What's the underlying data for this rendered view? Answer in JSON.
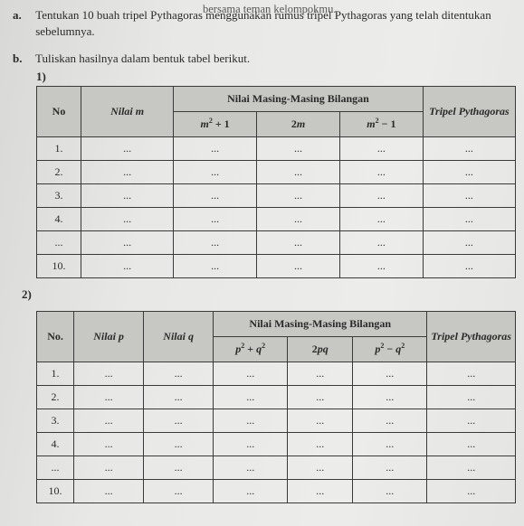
{
  "pretext": "bersama teman kelompokmu.",
  "qa": {
    "label": "a.",
    "text": "Tentukan 10 buah tripel Pythagoras menggunakan rumus tripel Pythagoras yang telah ditentukan sebelumnya."
  },
  "qb": {
    "label": "b.",
    "text": "Tuliskan hasilnya dalam bentuk tabel berikut."
  },
  "t1": {
    "sub": "1)",
    "h_no": "No",
    "h_m": "Nilai m",
    "h_group": "Nilai Masing-Masing Bilangan",
    "h_c1": "m² + 1",
    "h_c2": "2m",
    "h_c3": "m² − 1",
    "h_tripel": "Tripel Pythagoras",
    "rows": [
      {
        "no": "1.",
        "m": "...",
        "c1": "...",
        "c2": "...",
        "c3": "...",
        "t": "..."
      },
      {
        "no": "2.",
        "m": "...",
        "c1": "...",
        "c2": "...",
        "c3": "...",
        "t": "..."
      },
      {
        "no": "3.",
        "m": "...",
        "c1": "...",
        "c2": "...",
        "c3": "...",
        "t": "..."
      },
      {
        "no": "4.",
        "m": "...",
        "c1": "...",
        "c2": "...",
        "c3": "...",
        "t": "..."
      },
      {
        "no": "...",
        "m": "...",
        "c1": "...",
        "c2": "...",
        "c3": "...",
        "t": "..."
      },
      {
        "no": "10.",
        "m": "...",
        "c1": "...",
        "c2": "...",
        "c3": "...",
        "t": "..."
      }
    ]
  },
  "t2": {
    "sub": "2)",
    "h_no": "No.",
    "h_p": "Nilai p",
    "h_q": "Nilai q",
    "h_group": "Nilai Masing-Masing Bilangan",
    "h_c1": "p² + q²",
    "h_c2": "2pq",
    "h_c3": "p² − q²",
    "h_tripel": "Tripel Pythagoras",
    "rows": [
      {
        "no": "1.",
        "p": "...",
        "q": "...",
        "c1": "...",
        "c2": "...",
        "c3": "...",
        "t": "..."
      },
      {
        "no": "2.",
        "p": "...",
        "q": "...",
        "c1": "...",
        "c2": "...",
        "c3": "...",
        "t": "..."
      },
      {
        "no": "3.",
        "p": "...",
        "q": "...",
        "c1": "...",
        "c2": "...",
        "c3": "...",
        "t": "..."
      },
      {
        "no": "4.",
        "p": "...",
        "q": "...",
        "c1": "...",
        "c2": "...",
        "c3": "...",
        "t": "..."
      },
      {
        "no": "...",
        "p": "...",
        "q": "...",
        "c1": "...",
        "c2": "...",
        "c3": "...",
        "t": "..."
      },
      {
        "no": "10.",
        "p": "...",
        "q": "...",
        "c1": "...",
        "c2": "...",
        "c3": "...",
        "t": "..."
      }
    ]
  }
}
